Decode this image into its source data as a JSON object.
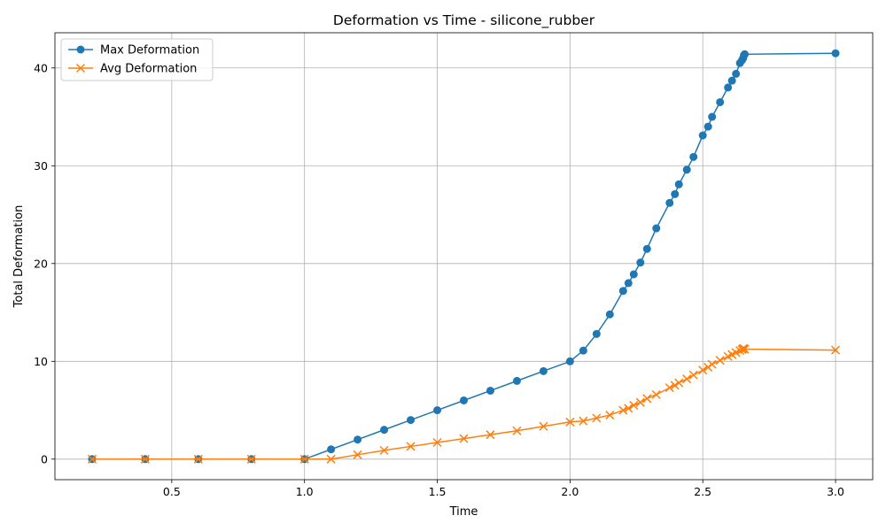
{
  "chart_data": {
    "type": "line",
    "title": "Deformation vs Time - silicone_rubber",
    "xlabel": "Time",
    "ylabel": "Total Deformation",
    "xlim": [
      0.06,
      3.14
    ],
    "ylim": [
      -2.1,
      43.6
    ],
    "xticks": [
      0.5,
      1.0,
      1.5,
      2.0,
      2.5,
      3.0
    ],
    "xtick_labels": [
      "0.5",
      "1.0",
      "1.5",
      "2.0",
      "2.5",
      "3.0"
    ],
    "yticks": [
      0,
      10,
      20,
      30,
      40
    ],
    "ytick_labels": [
      "0",
      "10",
      "20",
      "30",
      "40"
    ],
    "grid": true,
    "legend_position": "top-left",
    "series": [
      {
        "name": "Max Deformation",
        "color": "#1f77b4",
        "marker": "circle",
        "x": [
          0.2,
          0.4,
          0.6,
          0.8,
          1.0,
          1.1,
          1.2,
          1.3,
          1.4,
          1.5,
          1.6,
          1.7,
          1.8,
          1.9,
          2.0,
          2.05,
          2.1,
          2.15,
          2.2,
          2.22,
          2.24,
          2.265,
          2.29,
          2.325,
          2.375,
          2.395,
          2.41,
          2.44,
          2.465,
          2.5,
          2.52,
          2.535,
          2.565,
          2.595,
          2.61,
          2.625,
          2.64,
          2.648,
          2.652,
          2.655,
          2.658,
          3.0
        ],
        "y": [
          0,
          0,
          0,
          0,
          0,
          1,
          2,
          3,
          4,
          5,
          6,
          7,
          8,
          9,
          10,
          11.1,
          12.8,
          14.8,
          17.2,
          18.0,
          18.9,
          20.1,
          21.5,
          23.6,
          26.2,
          27.1,
          28.1,
          29.6,
          30.9,
          33.1,
          34.0,
          35.0,
          36.5,
          38.0,
          38.7,
          39.4,
          40.5,
          40.8,
          41.0,
          41.3,
          41.4,
          41.5
        ]
      },
      {
        "name": "Avg Deformation",
        "color": "#ff7f0e",
        "marker": "x",
        "x": [
          0.2,
          0.4,
          0.6,
          0.8,
          1.0,
          1.1,
          1.2,
          1.3,
          1.4,
          1.5,
          1.6,
          1.7,
          1.8,
          1.9,
          2.0,
          2.05,
          2.1,
          2.15,
          2.2,
          2.22,
          2.24,
          2.265,
          2.29,
          2.325,
          2.375,
          2.395,
          2.41,
          2.44,
          2.465,
          2.5,
          2.52,
          2.535,
          2.565,
          2.595,
          2.61,
          2.625,
          2.64,
          2.648,
          2.652,
          2.655,
          2.658,
          3.0
        ],
        "y": [
          0,
          0,
          0,
          0,
          0,
          0,
          0.45,
          0.9,
          1.3,
          1.7,
          2.1,
          2.5,
          2.9,
          3.35,
          3.8,
          3.9,
          4.2,
          4.5,
          5.0,
          5.2,
          5.5,
          5.8,
          6.2,
          6.6,
          7.3,
          7.55,
          7.8,
          8.2,
          8.6,
          9.1,
          9.4,
          9.7,
          10.1,
          10.5,
          10.7,
          10.9,
          11.1,
          11.2,
          11.3,
          11.3,
          11.25,
          11.15
        ]
      }
    ]
  }
}
